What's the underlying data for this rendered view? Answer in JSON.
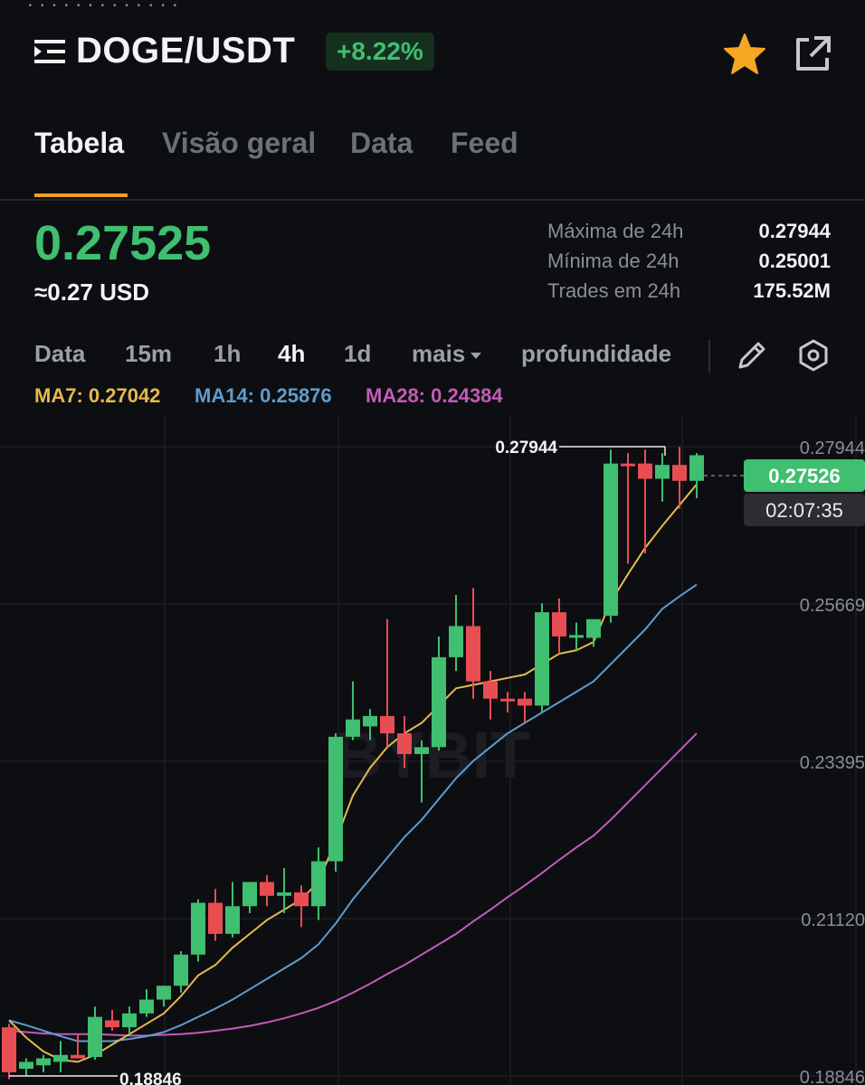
{
  "header": {
    "pair": "DOGE/USDT",
    "change": "+8.22%",
    "menu_icon": "list-menu-icon",
    "favorite_icon": "star-icon",
    "share_icon": "share-icon"
  },
  "tabs": [
    {
      "label": "Tabela",
      "active": true
    },
    {
      "label": "Visão geral"
    },
    {
      "label": "Data"
    },
    {
      "label": "Feed"
    }
  ],
  "price": {
    "last": "0.27525",
    "usd": "≈0.27 USD"
  },
  "stats": [
    {
      "label": "Máxima de 24h",
      "value": "0.27944"
    },
    {
      "label": "Mínima de 24h",
      "value": "0.25001"
    },
    {
      "label": "Trades em 24h",
      "value": "175.52M"
    }
  ],
  "timeframes": {
    "items": [
      "Data",
      "15m",
      "1h",
      "4h",
      "1d"
    ],
    "active": "4h",
    "more": "mais",
    "depth": "profundidade"
  },
  "ma_legend": [
    {
      "label": "MA7: 0.27042",
      "color": "#e6b84f"
    },
    {
      "label": "MA14: 0.25876",
      "color": "#5f9ccd"
    },
    {
      "label": "MA28: 0.24384",
      "color": "#c45bb8"
    }
  ],
  "colors": {
    "up": "#3fbf6f",
    "down": "#e84d54",
    "accent": "#f0a020"
  },
  "chart_data": {
    "type": "candlestick",
    "y_ticks": [
      "0.27944",
      "0.25669",
      "0.23395",
      "0.21120",
      "0.18846"
    ],
    "ylim": [
      0.18846,
      0.27944
    ],
    "high_marker": "0.27944",
    "low_marker": "0.18846",
    "current_price": "0.27526",
    "countdown": "02:07:35",
    "watermark": "BYBIT",
    "candles": [
      {
        "o": 0.1955,
        "h": 0.196,
        "l": 0.188,
        "c": 0.189
      },
      {
        "o": 0.1895,
        "h": 0.191,
        "l": 0.1885,
        "c": 0.1905
      },
      {
        "o": 0.19,
        "h": 0.1915,
        "l": 0.189,
        "c": 0.191
      },
      {
        "o": 0.1905,
        "h": 0.1935,
        "l": 0.189,
        "c": 0.1915
      },
      {
        "o": 0.1915,
        "h": 0.1945,
        "l": 0.191,
        "c": 0.191
      },
      {
        "o": 0.1912,
        "h": 0.1985,
        "l": 0.1908,
        "c": 0.197
      },
      {
        "o": 0.1965,
        "h": 0.198,
        "l": 0.195,
        "c": 0.1955
      },
      {
        "o": 0.1955,
        "h": 0.1985,
        "l": 0.1945,
        "c": 0.1975
      },
      {
        "o": 0.1975,
        "h": 0.201,
        "l": 0.197,
        "c": 0.1995
      },
      {
        "o": 0.1995,
        "h": 0.2015,
        "l": 0.1985,
        "c": 0.2015
      },
      {
        "o": 0.2015,
        "h": 0.2065,
        "l": 0.2005,
        "c": 0.206
      },
      {
        "o": 0.206,
        "h": 0.214,
        "l": 0.205,
        "c": 0.2135
      },
      {
        "o": 0.2135,
        "h": 0.2155,
        "l": 0.208,
        "c": 0.209
      },
      {
        "o": 0.209,
        "h": 0.2165,
        "l": 0.2085,
        "c": 0.213
      },
      {
        "o": 0.213,
        "h": 0.2165,
        "l": 0.212,
        "c": 0.2165
      },
      {
        "o": 0.2165,
        "h": 0.2175,
        "l": 0.213,
        "c": 0.2145
      },
      {
        "o": 0.2145,
        "h": 0.2185,
        "l": 0.212,
        "c": 0.215
      },
      {
        "o": 0.215,
        "h": 0.216,
        "l": 0.21,
        "c": 0.213
      },
      {
        "o": 0.213,
        "h": 0.2215,
        "l": 0.211,
        "c": 0.2195
      },
      {
        "o": 0.2195,
        "h": 0.238,
        "l": 0.218,
        "c": 0.2375
      },
      {
        "o": 0.2375,
        "h": 0.2455,
        "l": 0.237,
        "c": 0.24
      },
      {
        "o": 0.239,
        "h": 0.2415,
        "l": 0.237,
        "c": 0.2405
      },
      {
        "o": 0.2405,
        "h": 0.2545,
        "l": 0.236,
        "c": 0.238
      },
      {
        "o": 0.238,
        "h": 0.2405,
        "l": 0.233,
        "c": 0.235
      },
      {
        "o": 0.235,
        "h": 0.237,
        "l": 0.228,
        "c": 0.236
      },
      {
        "o": 0.236,
        "h": 0.252,
        "l": 0.2355,
        "c": 0.249
      },
      {
        "o": 0.249,
        "h": 0.258,
        "l": 0.247,
        "c": 0.2535
      },
      {
        "o": 0.2535,
        "h": 0.259,
        "l": 0.243,
        "c": 0.2455
      },
      {
        "o": 0.2455,
        "h": 0.247,
        "l": 0.24,
        "c": 0.243
      },
      {
        "o": 0.243,
        "h": 0.244,
        "l": 0.241,
        "c": 0.2428
      },
      {
        "o": 0.243,
        "h": 0.244,
        "l": 0.2395,
        "c": 0.242
      },
      {
        "o": 0.242,
        "h": 0.2568,
        "l": 0.241,
        "c": 0.2555
      },
      {
        "o": 0.2555,
        "h": 0.2575,
        "l": 0.2495,
        "c": 0.252
      },
      {
        "o": 0.252,
        "h": 0.254,
        "l": 0.25,
        "c": 0.2522
      },
      {
        "o": 0.2518,
        "h": 0.2545,
        "l": 0.2505,
        "c": 0.2545
      },
      {
        "o": 0.255,
        "h": 0.279,
        "l": 0.254,
        "c": 0.277
      },
      {
        "o": 0.277,
        "h": 0.2785,
        "l": 0.2625,
        "c": 0.2768
      },
      {
        "o": 0.277,
        "h": 0.279,
        "l": 0.264,
        "c": 0.2748
      },
      {
        "o": 0.2748,
        "h": 0.2785,
        "l": 0.2715,
        "c": 0.2768
      },
      {
        "o": 0.2768,
        "h": 0.2794,
        "l": 0.2705,
        "c": 0.2745
      },
      {
        "o": 0.2745,
        "h": 0.2785,
        "l": 0.272,
        "c": 0.2782
      }
    ],
    "ma7": [
      0.1965,
      0.194,
      0.192,
      0.1908,
      0.1905,
      0.1915,
      0.193,
      0.1945,
      0.196,
      0.1975,
      0.2,
      0.203,
      0.2045,
      0.207,
      0.209,
      0.211,
      0.2125,
      0.214,
      0.2165,
      0.2225,
      0.229,
      0.233,
      0.236,
      0.238,
      0.2395,
      0.242,
      0.2445,
      0.245,
      0.2455,
      0.246,
      0.2465,
      0.248,
      0.2495,
      0.25,
      0.2512,
      0.257,
      0.261,
      0.2648,
      0.268,
      0.271,
      0.274
    ],
    "ma14": [
      0.1965,
      0.1958,
      0.195,
      0.1942,
      0.1935,
      0.1935,
      0.1935,
      0.1938,
      0.1942,
      0.1948,
      0.1958,
      0.197,
      0.1982,
      0.1995,
      0.201,
      0.2025,
      0.204,
      0.2055,
      0.2075,
      0.2105,
      0.214,
      0.217,
      0.22,
      0.223,
      0.2255,
      0.2285,
      0.2315,
      0.234,
      0.236,
      0.238,
      0.2395,
      0.241,
      0.2425,
      0.244,
      0.2455,
      0.248,
      0.2505,
      0.253,
      0.256,
      0.2578,
      0.2595
    ],
    "ma28": [
      0.195,
      0.1948,
      0.1946,
      0.1945,
      0.1945,
      0.1945,
      0.1944,
      0.1943,
      0.1943,
      0.1944,
      0.1945,
      0.1947,
      0.195,
      0.1953,
      0.1957,
      0.1962,
      0.1968,
      0.1975,
      0.1983,
      0.1993,
      0.2005,
      0.2018,
      0.2032,
      0.2045,
      0.206,
      0.2075,
      0.209,
      0.2108,
      0.2125,
      0.2143,
      0.216,
      0.2178,
      0.2197,
      0.2215,
      0.2232,
      0.2255,
      0.228,
      0.2305,
      0.233,
      0.2355,
      0.238
    ]
  }
}
